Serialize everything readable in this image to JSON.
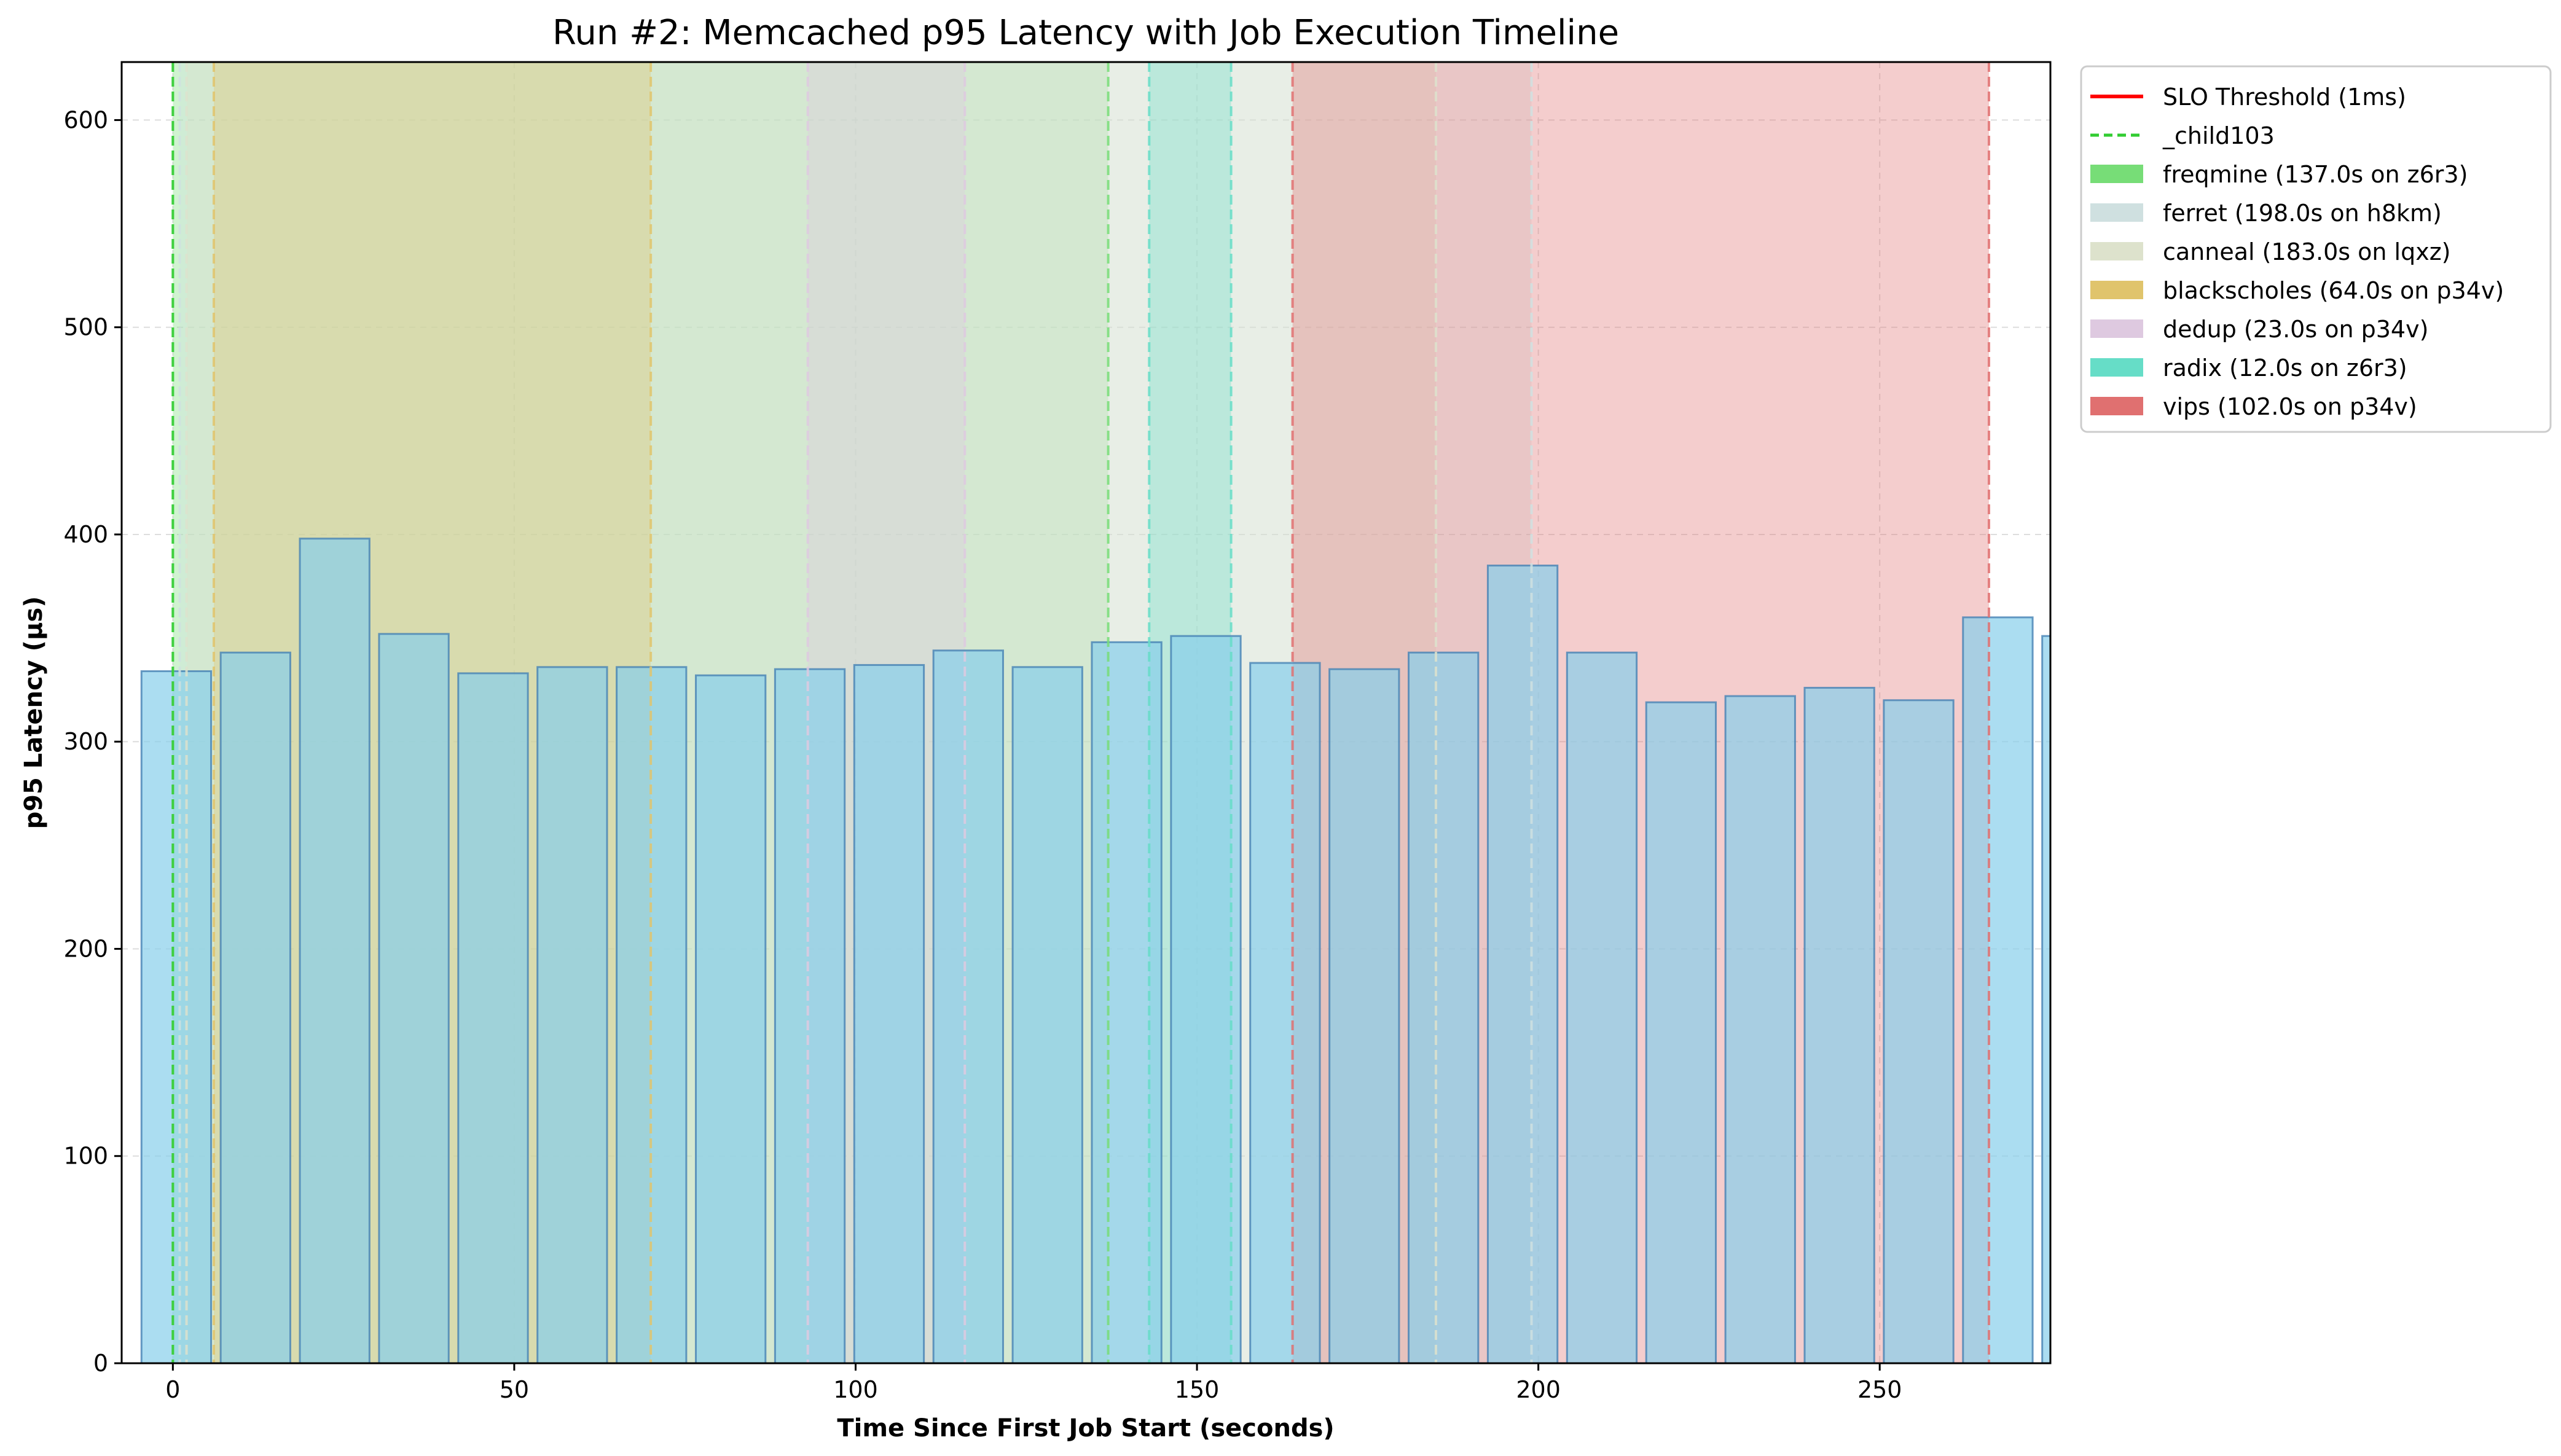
{
  "chart_data": {
    "type": "bar",
    "title": "Run #2: Memcached p95 Latency with Job Execution Timeline",
    "xlabel": "Time Since First Job Start (seconds)",
    "ylabel": "p95 Latency (µs)",
    "xlim": [
      -7.5,
      275
    ],
    "ylim": [
      0,
      628
    ],
    "xticks": [
      0,
      50,
      100,
      150,
      200,
      250
    ],
    "yticks": [
      0,
      100,
      200,
      300,
      400,
      500,
      600
    ],
    "grid": true,
    "legend_position": "outside-right",
    "bar_color": "#87ceeb",
    "bar_edge_color": "#4682b4",
    "bars": {
      "x": [
        0.5,
        12.1,
        23.7,
        35.3,
        46.9,
        58.5,
        70.1,
        81.7,
        93.3,
        104.9,
        116.5,
        128.1,
        139.7,
        151.3,
        162.9,
        174.5,
        186.1,
        197.7,
        209.3,
        220.9,
        232.5,
        244.1,
        255.7,
        267.3,
        278.9
      ],
      "width": 10.2,
      "values": [
        334,
        343,
        398,
        352,
        333,
        336,
        336,
        332,
        335,
        337,
        344,
        336,
        348,
        351,
        338,
        335,
        343,
        385,
        343,
        319,
        322,
        326,
        320,
        360,
        351
      ]
    },
    "slo_threshold": {
      "label": "SLO Threshold (1ms)",
      "value_us": 1000,
      "color": "#ff0000"
    },
    "markers": [
      {
        "label": "_child103",
        "x": 0,
        "color": "#32cd32"
      }
    ],
    "jobs": [
      {
        "label": "freqmine (137.0s on z6r3)",
        "start": 0,
        "end": 137,
        "color": "#77dd77"
      },
      {
        "label": "ferret (198.0s on h8km)",
        "start": 1,
        "end": 199,
        "color": "#cfe0e0"
      },
      {
        "label": "canneal (183.0s on lqxz)",
        "start": 2,
        "end": 185,
        "color": "#dde2cc"
      },
      {
        "label": "blackscholes (64.0s on p34v)",
        "start": 6,
        "end": 70,
        "color": "#e0c46c"
      },
      {
        "label": "dedup (23.0s on p34v)",
        "start": 93,
        "end": 116,
        "color": "#dec9e0"
      },
      {
        "label": "radix (12.0s on z6r3)",
        "start": 143,
        "end": 155,
        "color": "#66ddc7"
      },
      {
        "label": "vips (102.0s on p34v)",
        "start": 164,
        "end": 266,
        "color": "#e07070"
      }
    ]
  }
}
